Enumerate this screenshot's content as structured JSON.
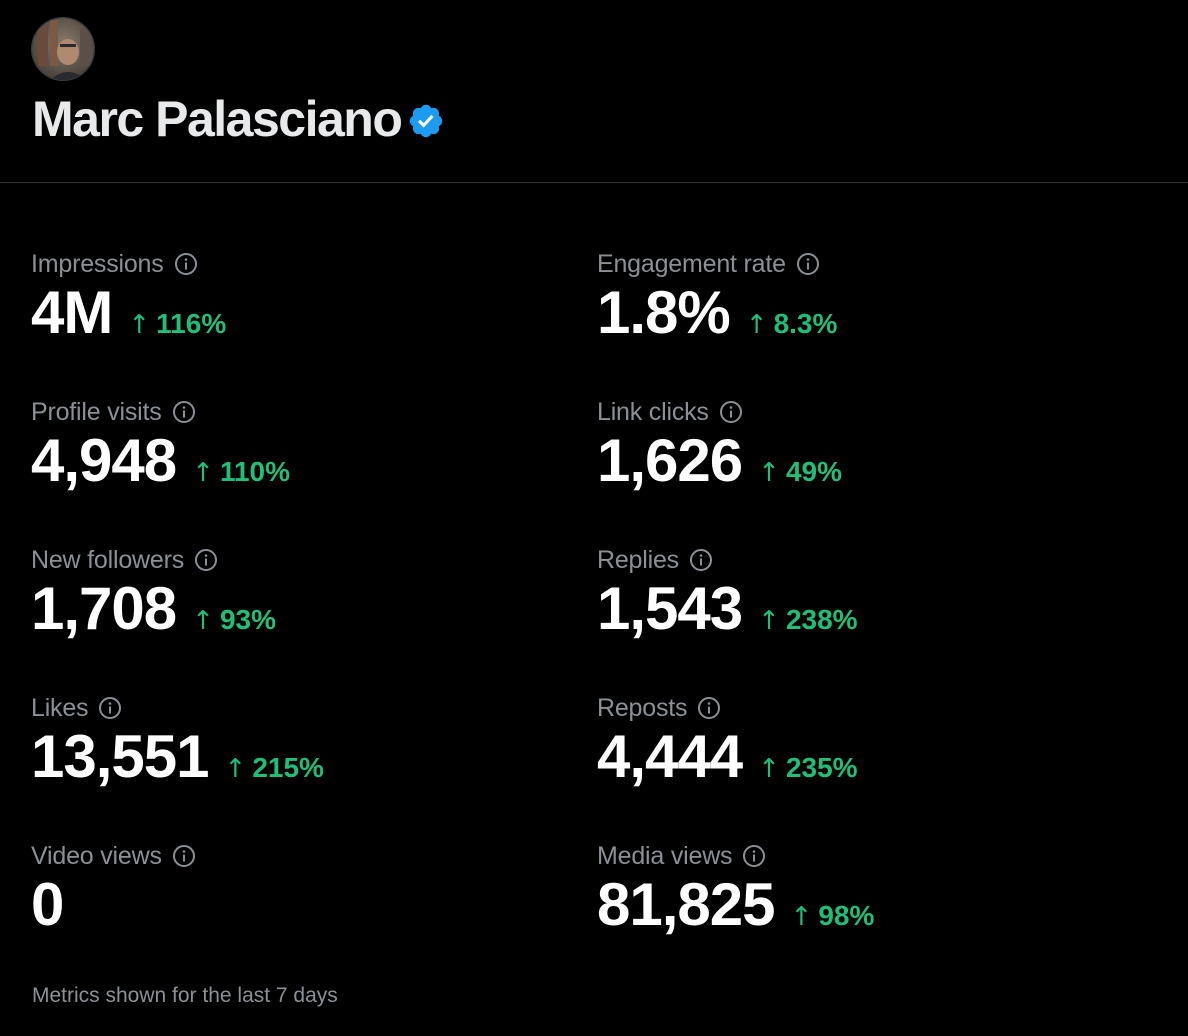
{
  "profile": {
    "name": "Marc Palasciano",
    "verified": true
  },
  "colors": {
    "background": "#000000",
    "positive_change": "#1fbf7a",
    "verified_badge": "#1d9bf0",
    "label": "#8b9096"
  },
  "metrics": [
    {
      "label": "Impressions",
      "value": "4M",
      "arrow": "↑",
      "change": "116%"
    },
    {
      "label": "Engagement rate",
      "value": "1.8%",
      "arrow": "↑",
      "change": "8.3%"
    },
    {
      "label": "Profile visits",
      "value": "4,948",
      "arrow": "↑",
      "change": "110%"
    },
    {
      "label": "Link clicks",
      "value": "1,626",
      "arrow": "↑",
      "change": "49%"
    },
    {
      "label": "New followers",
      "value": "1,708",
      "arrow": "↑",
      "change": "93%"
    },
    {
      "label": "Replies",
      "value": "1,543",
      "arrow": "↑",
      "change": "238%"
    },
    {
      "label": "Likes",
      "value": "13,551",
      "arrow": "↑",
      "change": "215%"
    },
    {
      "label": "Reposts",
      "value": "4,444",
      "arrow": "↑",
      "change": "235%"
    },
    {
      "label": "Video views",
      "value": "0",
      "arrow": "",
      "change": ""
    },
    {
      "label": "Media views",
      "value": "81,825",
      "arrow": "↑",
      "change": "98%"
    }
  ],
  "footer": {
    "note": "Metrics shown for the last 7 days"
  }
}
